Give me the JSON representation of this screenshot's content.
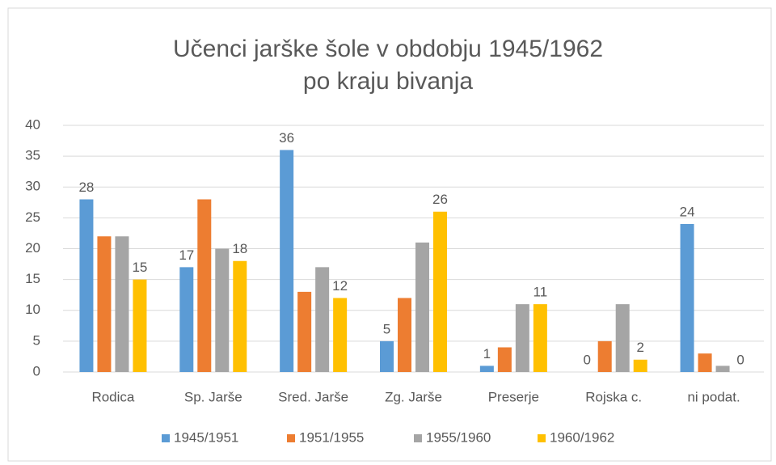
{
  "chart_data": {
    "type": "bar",
    "title": [
      "Učenci jarške šole v obdobju 1945/1962",
      "po kraju bivanja"
    ],
    "categories": [
      "Rodica",
      "Sp. Jarše",
      "Sred. Jarše",
      "Zg. Jarše",
      "Preserje",
      "Rojska c.",
      "ni podat."
    ],
    "series": [
      {
        "name": "1945/1951",
        "color": "#5b9bd5",
        "values": [
          28,
          17,
          36,
          5,
          1,
          0,
          24
        ],
        "data_labels": true
      },
      {
        "name": "1951/1955",
        "color": "#ed7d31",
        "values": [
          22,
          28,
          13,
          12,
          4,
          5,
          3
        ],
        "data_labels": false
      },
      {
        "name": "1955/1960",
        "color": "#a5a5a5",
        "values": [
          22,
          20,
          17,
          21,
          11,
          11,
          1
        ],
        "data_labels": false
      },
      {
        "name": "1960/1962",
        "color": "#ffc000",
        "values": [
          15,
          18,
          12,
          26,
          11,
          2,
          0
        ],
        "data_labels": true
      }
    ],
    "ylim": [
      0,
      40
    ],
    "yticks": [
      0,
      5,
      10,
      15,
      20,
      25,
      30,
      35,
      40
    ],
    "grid": true,
    "legend": "bottom"
  }
}
